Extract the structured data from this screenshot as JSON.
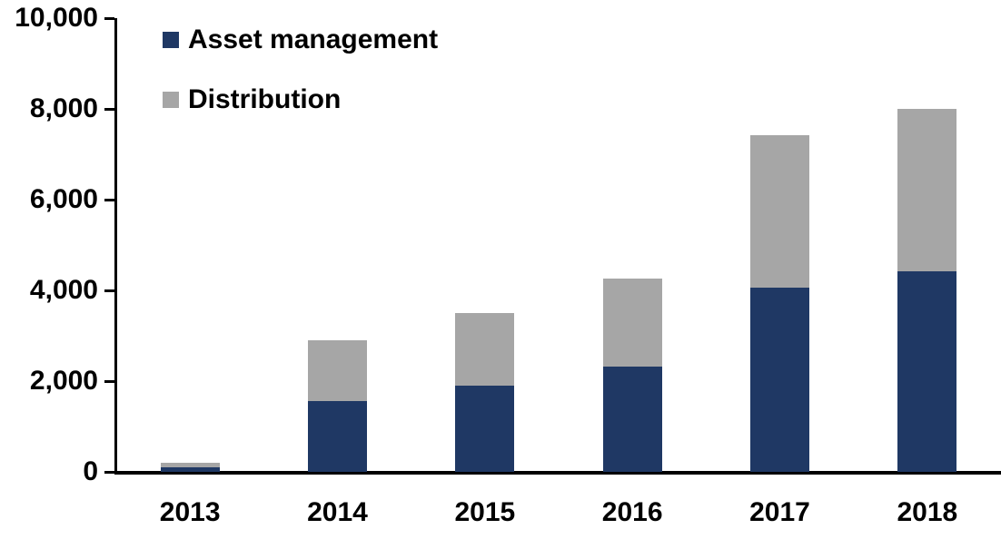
{
  "chart_data": {
    "type": "bar",
    "stacked": true,
    "title": "",
    "xlabel": "",
    "ylabel": "",
    "categories": [
      "2013",
      "2014",
      "2015",
      "2016",
      "2017",
      "2018"
    ],
    "series": [
      {
        "name": "Asset management",
        "color": "#1F3864",
        "values": [
          100,
          1550,
          1900,
          2320,
          4050,
          4420
        ]
      },
      {
        "name": "Distribution",
        "color": "#A6A6A6",
        "values": [
          100,
          1330,
          1600,
          1930,
          3350,
          3580
        ]
      }
    ],
    "ylim": [
      0,
      10000
    ],
    "yticks": [
      0,
      2000,
      4000,
      6000,
      8000,
      10000
    ],
    "ytick_labels": [
      "0",
      "2,000",
      "4,000",
      "6,000",
      "8,000",
      "10,000"
    ],
    "grid": false,
    "legend_position": "top-left-inside"
  },
  "colors": {
    "background": "#FFFFFF",
    "axis": "#000000",
    "text": "#000000"
  }
}
